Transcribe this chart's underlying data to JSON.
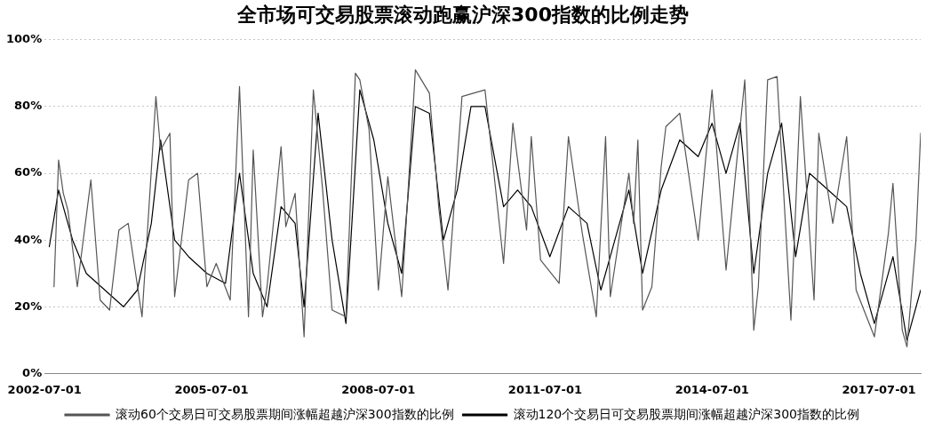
{
  "chart_data": {
    "type": "line",
    "title": "全市场可交易股票滚动跑赢沪深300指数的比例走势",
    "xlim": [
      "2002-07-01",
      "2018-04-01"
    ],
    "xticks": [
      "2002-07-01",
      "2005-07-01",
      "2008-07-01",
      "2011-07-01",
      "2014-07-01",
      "2017-07-01"
    ],
    "ylim": [
      0,
      100
    ],
    "yticks": [
      {
        "value": 0,
        "label": "0%"
      },
      {
        "value": 20,
        "label": "20%"
      },
      {
        "value": 40,
        "label": "40%"
      },
      {
        "value": 60,
        "label": "60%"
      },
      {
        "value": 80,
        "label": "80%"
      },
      {
        "value": 100,
        "label": "100%"
      }
    ],
    "grid": "y",
    "legend": "bottom",
    "marker": "none",
    "line_style": "solid",
    "series": [
      {
        "name": "滚动60个交易日可交易股票期间涨幅超越沪深300指数的比例",
        "color": "#555555",
        "x": [
          "2002-09",
          "2002-10",
          "2002-11",
          "2002-12",
          "2003-02",
          "2003-05",
          "2003-07",
          "2003-09",
          "2003-11",
          "2004-01",
          "2004-04",
          "2004-06",
          "2004-07",
          "2004-08",
          "2004-10",
          "2004-11",
          "2005-02",
          "2005-04",
          "2005-06",
          "2005-08",
          "2005-11",
          "2006-01",
          "2006-03",
          "2006-04",
          "2006-06",
          "2006-07",
          "2006-10",
          "2006-11",
          "2007-01",
          "2007-03",
          "2007-05",
          "2007-07",
          "2007-09",
          "2007-12",
          "2008-02",
          "2008-03",
          "2008-05",
          "2008-07",
          "2008-09",
          "2008-12",
          "2009-03",
          "2009-06",
          "2009-08",
          "2009-10",
          "2010-01",
          "2010-06",
          "2010-10",
          "2010-12",
          "2011-03",
          "2011-04",
          "2011-06",
          "2011-10",
          "2011-12",
          "2012-03",
          "2012-06",
          "2012-08",
          "2012-09",
          "2013-01",
          "2013-02",
          "2013-03",
          "2013-04",
          "2013-06",
          "2013-08",
          "2013-09",
          "2013-12",
          "2014-04",
          "2014-07",
          "2014-10",
          "2015-02",
          "2015-04",
          "2015-05",
          "2015-07",
          "2015-09",
          "2015-12",
          "2016-02",
          "2016-05",
          "2016-06",
          "2016-09",
          "2016-12",
          "2017-02",
          "2017-06",
          "2017-09",
          "2017-10",
          "2017-12",
          "2018-01",
          "2018-03",
          "2018-04"
        ],
        "values": [
          26,
          64,
          54,
          49,
          26,
          58,
          22,
          19,
          43,
          45,
          17,
          61,
          83,
          67,
          72,
          23,
          58,
          60,
          26,
          33,
          22,
          86,
          17,
          67,
          17,
          26,
          68,
          44,
          54,
          11,
          85,
          55,
          19,
          17,
          90,
          88,
          73,
          25,
          59,
          23,
          91,
          84,
          50,
          25,
          83,
          85,
          33,
          75,
          43,
          71,
          34,
          27,
          71,
          42,
          17,
          71,
          23,
          60,
          45,
          70,
          19,
          26,
          62,
          74,
          78,
          40,
          85,
          31,
          88,
          13,
          26,
          88,
          89,
          16,
          83,
          22,
          72,
          45,
          71,
          25,
          11,
          42,
          57,
          13,
          8,
          40,
          72
        ]
      },
      {
        "name": "滚动120个交易日可交易股票期间涨幅超越沪深300指数的比例",
        "color": "#000000",
        "x": [
          "2002-08",
          "2002-10",
          "2003-01",
          "2003-04",
          "2003-08",
          "2003-12",
          "2004-03",
          "2004-06",
          "2004-08",
          "2004-11",
          "2005-02",
          "2005-06",
          "2005-10",
          "2006-01",
          "2006-04",
          "2006-07",
          "2006-10",
          "2007-01",
          "2007-03",
          "2007-06",
          "2007-09",
          "2007-12",
          "2008-03",
          "2008-06",
          "2008-09",
          "2008-12",
          "2009-03",
          "2009-06",
          "2009-09",
          "2009-12",
          "2010-03",
          "2010-06",
          "2010-10",
          "2011-01",
          "2011-04",
          "2011-08",
          "2011-12",
          "2012-04",
          "2012-07",
          "2012-10",
          "2013-01",
          "2013-04",
          "2013-08",
          "2013-12",
          "2014-04",
          "2014-07",
          "2014-10",
          "2015-01",
          "2015-04",
          "2015-07",
          "2015-10",
          "2016-01",
          "2016-04",
          "2016-08",
          "2016-12",
          "2017-03",
          "2017-06",
          "2017-10",
          "2018-01",
          "2018-04"
        ],
        "values": [
          38,
          55,
          40,
          30,
          25,
          20,
          25,
          45,
          70,
          40,
          35,
          30,
          27,
          60,
          30,
          20,
          50,
          45,
          20,
          78,
          40,
          15,
          85,
          70,
          45,
          30,
          80,
          78,
          40,
          55,
          80,
          80,
          50,
          55,
          50,
          35,
          50,
          45,
          25,
          40,
          55,
          30,
          55,
          70,
          65,
          75,
          60,
          75,
          30,
          60,
          75,
          35,
          60,
          55,
          50,
          30,
          15,
          35,
          10,
          25
        ]
      }
    ]
  }
}
